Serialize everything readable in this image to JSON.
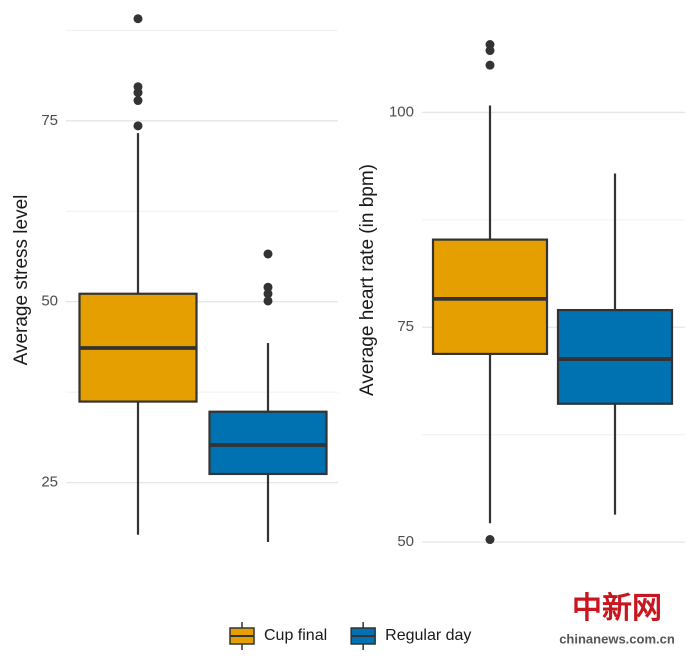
{
  "chart_data": [
    {
      "type": "box",
      "ylabel": "Average stress level",
      "ylim": [
        15,
        91
      ],
      "yticks": [
        25,
        50,
        75
      ],
      "minor_grid": [
        37.5,
        62.5,
        87.5
      ],
      "grid": true,
      "series": [
        {
          "whislo": 17.8,
          "q1": 36.2,
          "med": 43.6,
          "q3": 51.1,
          "whishi": 73.3,
          "fliers": [
            89.1,
            79.7,
            78.9,
            77.8,
            74.3
          ]
        },
        {
          "whislo": 16.8,
          "q1": 26.2,
          "med": 30.2,
          "q3": 34.8,
          "whishi": 44.3,
          "fliers": [
            56.6,
            52.0,
            51.1,
            50.1
          ]
        }
      ]
    },
    {
      "type": "box",
      "ylabel": "Average heart rate (in bpm)",
      "ylim": [
        48.5,
        112.5
      ],
      "yticks": [
        50,
        75,
        100
      ],
      "minor_grid": [
        62.5,
        87.5
      ],
      "grid": true,
      "series": [
        {
          "whislo": 52.2,
          "q1": 71.9,
          "med": 78.3,
          "q3": 85.2,
          "whishi": 100.8,
          "fliers": [
            107.9,
            107.2,
            105.5,
            50.3
          ]
        },
        {
          "whislo": 53.2,
          "q1": 66.1,
          "med": 71.3,
          "q3": 77.0,
          "whishi": 92.9,
          "fliers": []
        }
      ]
    }
  ],
  "legend": [
    {
      "name": "Cup final",
      "color": "#E69F00"
    },
    {
      "name": "Regular day",
      "color": "#0072B2"
    }
  ],
  "legend_position": "bottom",
  "watermark": {
    "title": "中新网",
    "url": "chinanews.com.cn"
  }
}
